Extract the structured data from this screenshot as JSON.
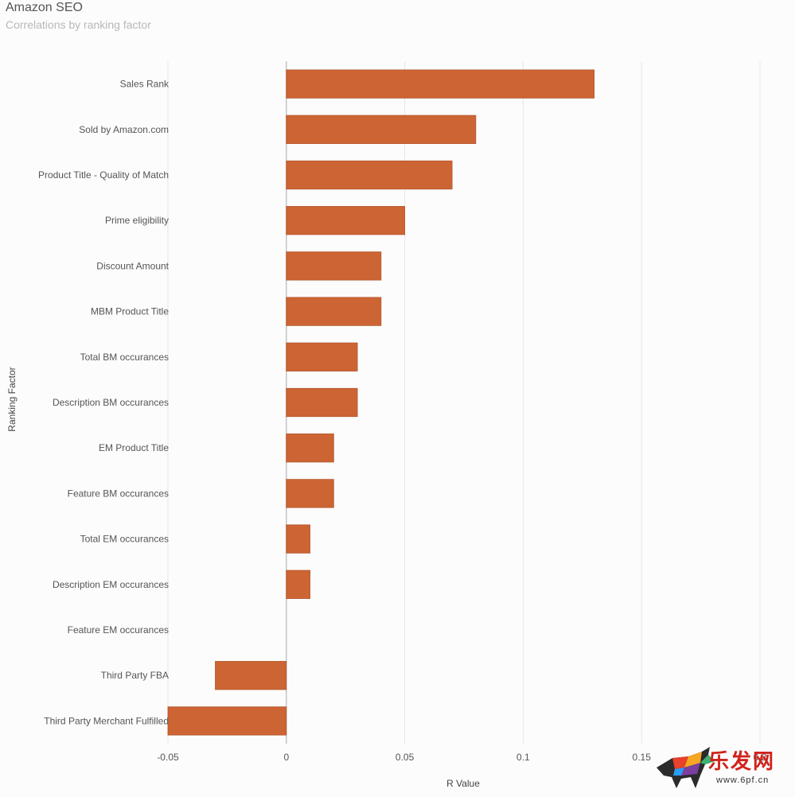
{
  "header": {
    "title": "Amazon SEO",
    "subtitle": "Correlations by ranking factor"
  },
  "chart_data": {
    "type": "bar",
    "orientation": "horizontal",
    "title": "Amazon SEO",
    "subtitle": "Correlations by ranking factor",
    "xlabel": "R Value",
    "ylabel": "Ranking Factor",
    "xlim": [
      -0.05,
      0.2
    ],
    "xticks": [
      -0.05,
      0,
      0.05,
      0.1,
      0.15,
      0.2
    ],
    "xtick_labels": [
      "-0.05",
      "0",
      "0.05",
      "0.1",
      "0.15",
      "0.2"
    ],
    "grid": true,
    "bar_color": "#cd6434",
    "categories": [
      "Sales Rank",
      "Sold by Amazon.com",
      "Product Title - Quality of Match",
      "Prime eligibility",
      "Discount Amount",
      "MBM Product Title",
      "Total BM occurances",
      "Description BM occurances",
      "EM Product Title",
      "Feature BM occurances",
      "Total EM occurances",
      "Description EM occurances",
      "Feature EM occurances",
      "Third Party FBA",
      "Third Party Merchant Fulfilled"
    ],
    "values": [
      0.13,
      0.08,
      0.07,
      0.05,
      0.04,
      0.04,
      0.03,
      0.03,
      0.02,
      0.02,
      0.01,
      0.01,
      0,
      -0.03,
      -0.05
    ]
  },
  "watermark": {
    "text": "乐发网",
    "url": "www.6pf.cn"
  }
}
